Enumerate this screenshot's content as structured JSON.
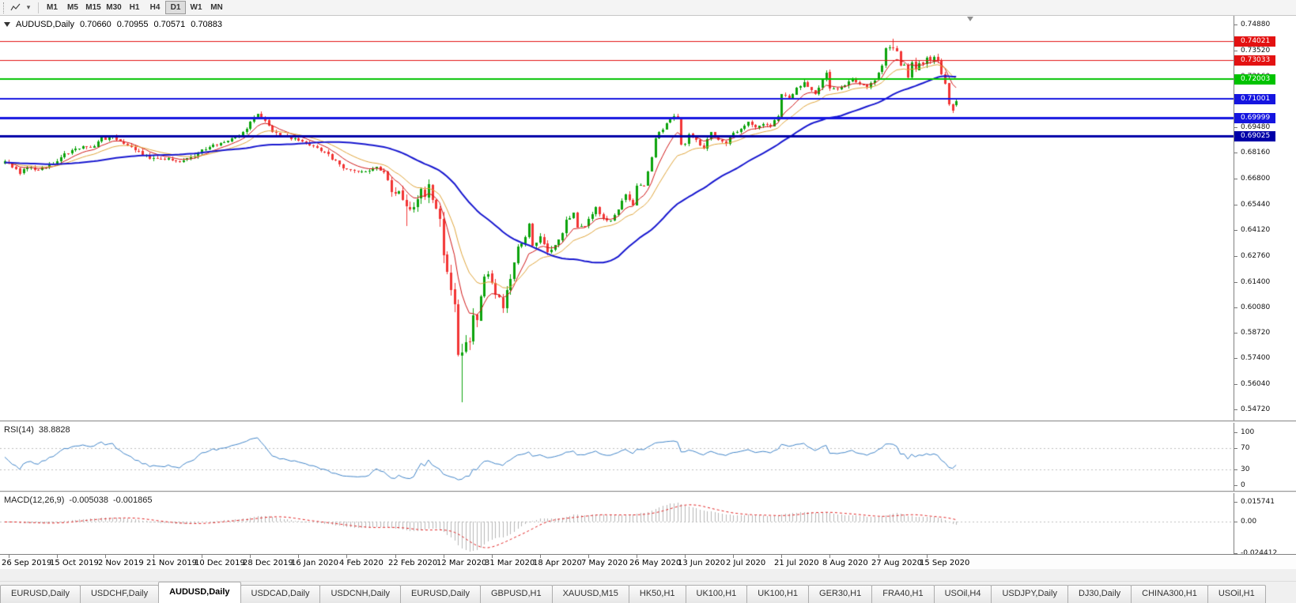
{
  "toolbar": {
    "timeframes": [
      "M1",
      "M5",
      "M15",
      "M30",
      "H1",
      "H4",
      "D1",
      "W1",
      "MN"
    ],
    "active_timeframe": "D1"
  },
  "chart": {
    "symbol_period": "AUDUSD,Daily",
    "ohlc": {
      "open": "0.70660",
      "high": "0.70955",
      "low": "0.70571",
      "close": "0.70883"
    },
    "price_ticks": [
      "0.74880",
      "0.73520",
      "0.72160",
      "0.70800",
      "0.69480",
      "0.68160",
      "0.66800",
      "0.65440",
      "0.64120",
      "0.62760",
      "0.61400",
      "0.60080",
      "0.58720",
      "0.57400",
      "0.56040",
      "0.54720"
    ],
    "hlines": [
      {
        "price": 0.74021,
        "label": "0.74021",
        "color": "#e31212",
        "width": 1
      },
      {
        "price": 0.73033,
        "label": "0.73033",
        "color": "#e31212",
        "width": 1
      },
      {
        "price": 0.72003,
        "label": "0.72003",
        "color": "#00c300",
        "width": 2
      },
      {
        "price": 0.71001,
        "label": "0.71001",
        "color": "#1515e0",
        "width": 2
      },
      {
        "price": 0.69999,
        "label": "0.69999",
        "color": "#1515e0",
        "width": 3
      },
      {
        "price": 0.69025,
        "label": "0.69025",
        "color": "#0000a8",
        "width": 3
      }
    ]
  },
  "rsi_panel": {
    "title": "RSI(14)",
    "value": "38.8828",
    "levels": [
      70,
      30
    ],
    "ticks": [
      {
        "v": 100,
        "label": "100"
      },
      {
        "v": 70,
        "label": "70"
      },
      {
        "v": 30,
        "label": "30"
      },
      {
        "v": 0,
        "label": "0"
      }
    ]
  },
  "macd_panel": {
    "title": "MACD(12,26,9)",
    "value1": "-0.005038",
    "value2": "-0.001865",
    "ticks": [
      {
        "v": 0.015741,
        "label": "0.015741"
      },
      {
        "v": 0,
        "label": "0.00"
      },
      {
        "v": -0.024412,
        "label": "-0.024412"
      }
    ]
  },
  "date_axis": [
    {
      "t": "26 Sep 2019",
      "i": 1
    },
    {
      "t": "15 Oct 2019",
      "i": 14
    },
    {
      "t": "2 Nov 2019",
      "i": 27
    },
    {
      "t": "21 Nov 2019",
      "i": 40
    },
    {
      "t": "10 Dec 2019",
      "i": 53
    },
    {
      "t": "28 Dec 2019",
      "i": 66
    },
    {
      "t": "16 Jan 2020",
      "i": 79
    },
    {
      "t": "4 Feb 2020",
      "i": 92
    },
    {
      "t": "22 Feb 2020",
      "i": 105
    },
    {
      "t": "12 Mar 2020",
      "i": 118
    },
    {
      "t": "31 Mar 2020",
      "i": 131
    },
    {
      "t": "18 Apr 2020",
      "i": 144
    },
    {
      "t": "7 May 2020",
      "i": 157
    },
    {
      "t": "26 May 2020",
      "i": 170
    },
    {
      "t": "13 Jun 2020",
      "i": 183
    },
    {
      "t": "2 Jul 2020",
      "i": 196
    },
    {
      "t": "21 Jul 2020",
      "i": 209
    },
    {
      "t": "8 Aug 2020",
      "i": 222
    },
    {
      "t": "27 Aug 2020",
      "i": 235
    },
    {
      "t": "15 Sep 2020",
      "i": 248
    }
  ],
  "tabs": [
    {
      "label": "EURUSD,Daily"
    },
    {
      "label": "USDCHF,Daily"
    },
    {
      "label": "AUDUSD,Daily",
      "active": true
    },
    {
      "label": "USDCAD,Daily"
    },
    {
      "label": "USDCNH,Daily"
    },
    {
      "label": "EURUSD,Daily"
    },
    {
      "label": "GBPUSD,H1"
    },
    {
      "label": "XAUUSD,M15"
    },
    {
      "label": "HK50,H1"
    },
    {
      "label": "UK100,H1"
    },
    {
      "label": "UK100,H1"
    },
    {
      "label": "GER30,H1"
    },
    {
      "label": "FRA40,H1"
    },
    {
      "label": "USOil,H4"
    },
    {
      "label": "USDJPY,Daily"
    },
    {
      "label": "DJ30,Daily"
    },
    {
      "label": "CHINA300,H1"
    },
    {
      "label": "USOil,H1"
    }
  ],
  "chart_data": {
    "type": "candlestick",
    "symbol": "AUDUSD",
    "period": "Daily",
    "candles_count": 257,
    "seed": 20200924,
    "last_candle": {
      "open": 0.7066,
      "high": 0.70955,
      "low": 0.70571,
      "close": 0.70883
    },
    "colors": {
      "up": "#0ba30b",
      "down": "#f23434"
    },
    "close_anchors": [
      [
        0,
        0.6765
      ],
      [
        4,
        0.6712
      ],
      [
        7,
        0.6742
      ],
      [
        9,
        0.6722
      ],
      [
        13,
        0.6756
      ],
      [
        16,
        0.681
      ],
      [
        20,
        0.6845
      ],
      [
        23,
        0.6838
      ],
      [
        26,
        0.6888
      ],
      [
        29,
        0.6896
      ],
      [
        34,
        0.684
      ],
      [
        39,
        0.679
      ],
      [
        43,
        0.6786
      ],
      [
        47,
        0.6772
      ],
      [
        50,
        0.6788
      ],
      [
        52,
        0.6818
      ],
      [
        55,
        0.685
      ],
      [
        58,
        0.6868
      ],
      [
        61,
        0.6886
      ],
      [
        63,
        0.691
      ],
      [
        65,
        0.6944
      ],
      [
        67,
        0.7
      ],
      [
        68,
        0.7014
      ],
      [
        70,
        0.6988
      ],
      [
        72,
        0.693
      ],
      [
        74,
        0.6906
      ],
      [
        78,
        0.689
      ],
      [
        81,
        0.6868
      ],
      [
        84,
        0.6842
      ],
      [
        87,
        0.6802
      ],
      [
        89,
        0.6772
      ],
      [
        91,
        0.6736
      ],
      [
        94,
        0.6722
      ],
      [
        97,
        0.6714
      ],
      [
        100,
        0.674
      ],
      [
        102,
        0.6716
      ],
      [
        104,
        0.6626
      ],
      [
        106,
        0.66
      ],
      [
        108,
        0.6546
      ],
      [
        109,
        0.6516
      ],
      [
        110,
        0.6536
      ],
      [
        111,
        0.6586
      ],
      [
        112,
        0.6622
      ],
      [
        113,
        0.6586
      ],
      [
        114,
        0.6638
      ],
      [
        115,
        0.658
      ],
      [
        116,
        0.6502
      ],
      [
        117,
        0.649
      ],
      [
        118,
        0.6288
      ],
      [
        119,
        0.6186
      ],
      [
        120,
        0.612
      ],
      [
        121,
        0.5998
      ],
      [
        122,
        0.5782
      ],
      [
        123,
        0.5742
      ],
      [
        124,
        0.58
      ],
      [
        125,
        0.5826
      ],
      [
        126,
        0.596
      ],
      [
        127,
        0.5954
      ],
      [
        128,
        0.6052
      ],
      [
        129,
        0.6164
      ],
      [
        130,
        0.6172
      ],
      [
        131,
        0.6136
      ],
      [
        132,
        0.607
      ],
      [
        133,
        0.6044
      ],
      [
        134,
        0.5996
      ],
      [
        135,
        0.6086
      ],
      [
        136,
        0.6166
      ],
      [
        137,
        0.6236
      ],
      [
        138,
        0.6334
      ],
      [
        140,
        0.6364
      ],
      [
        141,
        0.6438
      ],
      [
        142,
        0.6322
      ],
      [
        143,
        0.6354
      ],
      [
        144,
        0.6366
      ],
      [
        146,
        0.629
      ],
      [
        148,
        0.6324
      ],
      [
        150,
        0.6396
      ],
      [
        151,
        0.646
      ],
      [
        153,
        0.6508
      ],
      [
        154,
        0.6422
      ],
      [
        156,
        0.6436
      ],
      [
        158,
        0.6494
      ],
      [
        159,
        0.653
      ],
      [
        161,
        0.647
      ],
      [
        163,
        0.646
      ],
      [
        165,
        0.6524
      ],
      [
        167,
        0.6598
      ],
      [
        169,
        0.6542
      ],
      [
        170,
        0.6648
      ],
      [
        172,
        0.6638
      ],
      [
        174,
        0.6798
      ],
      [
        175,
        0.6888
      ],
      [
        176,
        0.692
      ],
      [
        177,
        0.694
      ],
      [
        178,
        0.6968
      ],
      [
        180,
        0.7014
      ],
      [
        181,
        0.7
      ],
      [
        182,
        0.6854
      ],
      [
        183,
        0.6864
      ],
      [
        184,
        0.6918
      ],
      [
        186,
        0.688
      ],
      [
        188,
        0.6836
      ],
      [
        190,
        0.693
      ],
      [
        192,
        0.6888
      ],
      [
        194,
        0.6864
      ],
      [
        195,
        0.69
      ],
      [
        196,
        0.6914
      ],
      [
        198,
        0.694
      ],
      [
        200,
        0.6984
      ],
      [
        202,
        0.695
      ],
      [
        204,
        0.6974
      ],
      [
        206,
        0.696
      ],
      [
        208,
        0.701
      ],
      [
        209,
        0.7128
      ],
      [
        211,
        0.71
      ],
      [
        213,
        0.715
      ],
      [
        215,
        0.7188
      ],
      [
        217,
        0.7142
      ],
      [
        218,
        0.712
      ],
      [
        220,
        0.7198
      ],
      [
        221,
        0.7232
      ],
      [
        222,
        0.7156
      ],
      [
        224,
        0.7146
      ],
      [
        226,
        0.7164
      ],
      [
        228,
        0.7204
      ],
      [
        230,
        0.7178
      ],
      [
        232,
        0.716
      ],
      [
        234,
        0.7196
      ],
      [
        235,
        0.7236
      ],
      [
        236,
        0.7264
      ],
      [
        237,
        0.7364
      ],
      [
        238,
        0.7376
      ],
      [
        239,
        0.7374
      ],
      [
        240,
        0.734
      ],
      [
        241,
        0.727
      ],
      [
        242,
        0.7282
      ],
      [
        243,
        0.7216
      ],
      [
        244,
        0.7284
      ],
      [
        245,
        0.7256
      ],
      [
        246,
        0.7286
      ],
      [
        247,
        0.7286
      ],
      [
        248,
        0.7304
      ],
      [
        249,
        0.7306
      ],
      [
        250,
        0.731
      ],
      [
        251,
        0.729
      ],
      [
        252,
        0.7226
      ],
      [
        253,
        0.717
      ],
      [
        254,
        0.707
      ],
      [
        255,
        0.7046
      ],
      [
        256,
        0.70883
      ]
    ],
    "special_candles": {
      "108": {
        "low": 0.6434
      },
      "123": {
        "low": 0.551
      },
      "239": {
        "high": 0.7413
      },
      "256": {
        "open": 0.7066,
        "high": 0.70955,
        "low": 0.70571,
        "close": 0.70883
      }
    },
    "moving_averages": [
      {
        "name": "fast",
        "period": 8,
        "type": "ema",
        "color": "#d01616",
        "width": 1
      },
      {
        "name": "medium",
        "period": 17,
        "type": "ema",
        "color": "#dfa43a",
        "width": 1
      },
      {
        "name": "slow",
        "period": 44,
        "type": "sma",
        "color": "#1717cf",
        "width": 2
      }
    ],
    "rsi": {
      "period": 14,
      "last": 38.8828,
      "color": "#4084c8"
    },
    "macd": {
      "fast": 12,
      "slow": 26,
      "signal": 9,
      "last": -0.005038,
      "signal_last": -0.001865,
      "hist_color": "#b6b6b6",
      "signal_color": "#e02020",
      "range": [
        -0.024412,
        0.015741
      ]
    }
  }
}
